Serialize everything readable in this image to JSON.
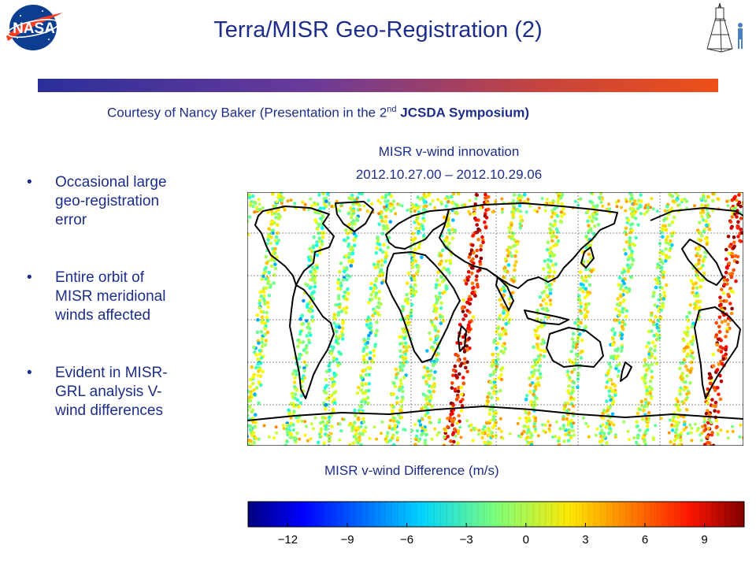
{
  "logo_text": "NASA",
  "title": "Terra/MISR Geo-Registration (2)",
  "credit": {
    "prefix": "Courtesy of Nancy Baker (Presentation in the 2",
    "sup": "nd",
    "bold": " JCSDA Symposium)"
  },
  "bullets": [
    {
      "line1": "Occasional large",
      "line2": "geo-registration",
      "line3": "error"
    },
    {
      "line1": "Entire orbit of",
      "line2": "MISR meridional",
      "line3": "winds affected"
    },
    {
      "line1": "Evident in MISR-",
      "line2": "GRL analysis V-",
      "line3": "wind differences"
    }
  ],
  "bullet_symbol": "•",
  "map": {
    "title": "MISR v-wind innovation",
    "dates": "2012.10.27.00 – 2012.10.29.06"
  },
  "colorbar": {
    "title": "MISR v-wind Difference (m/s)",
    "range": [
      -14,
      11
    ],
    "ticks": [
      "−12",
      "−9",
      "−6",
      "−3",
      "0",
      "3",
      "6",
      "9"
    ],
    "tick_values": [
      -12,
      -9,
      -6,
      -3,
      0,
      3,
      6,
      9
    ]
  },
  "colors": {
    "title": "#1d2d8a",
    "accent_start": "#2b2f9a",
    "accent_end": "#ee4f17"
  }
}
